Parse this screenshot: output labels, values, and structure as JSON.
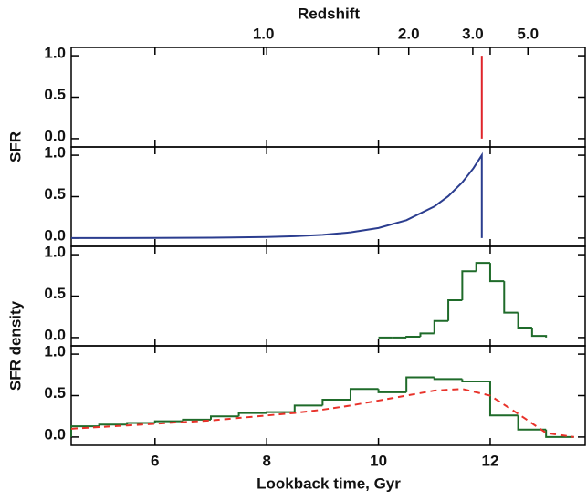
{
  "chart_data": [
    {
      "type": "line",
      "x2label": "Redshift",
      "x2ticks": [
        {
          "value": 1,
          "label": "1.0"
        },
        {
          "value": 2,
          "label": "2.0"
        },
        {
          "value": 3,
          "label": "3.0"
        },
        {
          "value": 5,
          "label": "5.0"
        }
      ],
      "xlim": [
        4.5,
        13.7
      ],
      "xticks": [
        6,
        8,
        10,
        12
      ],
      "ylim": [
        -0.1,
        1.1
      ],
      "yticks": [
        {
          "value": 0,
          "label": "0.0"
        },
        {
          "value": 0.5,
          "label": "0.5"
        },
        {
          "value": 1,
          "label": "1.0"
        }
      ],
      "ylabel": "SFR",
      "color": "#e0242a",
      "x": [
        11.85,
        11.85
      ],
      "values": [
        0,
        1
      ]
    },
    {
      "type": "line",
      "xlim": [
        4.5,
        13.7
      ],
      "xticks": [
        6,
        8,
        10,
        12
      ],
      "ylim": [
        -0.1,
        1.1
      ],
      "yticks": [
        {
          "value": 0,
          "label": "0.0"
        },
        {
          "value": 0.5,
          "label": "0.5"
        },
        {
          "value": 1,
          "label": "1.0"
        }
      ],
      "color": "#2b3d8f",
      "x": [
        4.5,
        5,
        6,
        7,
        8,
        8.5,
        9,
        9.5,
        10,
        10.5,
        11,
        11.25,
        11.5,
        11.7,
        11.85,
        11.85
      ],
      "values": [
        0.0002,
        0.0004,
        0.0013,
        0.004,
        0.0126,
        0.022,
        0.039,
        0.069,
        0.122,
        0.216,
        0.381,
        0.506,
        0.672,
        0.843,
        1,
        0
      ]
    },
    {
      "type": "histogram",
      "xlim": [
        4.5,
        13.7
      ],
      "xticks": [
        6,
        8,
        10,
        12
      ],
      "ylim": [
        -0.1,
        1.1
      ],
      "yticks": [
        {
          "value": 0,
          "label": "0.0"
        },
        {
          "value": 0.5,
          "label": "0.5"
        },
        {
          "value": 1,
          "label": "1.0"
        }
      ],
      "ylabel": "SFR density",
      "color": "#1f6b2a",
      "bins": [
        10,
        10.25,
        10.5,
        10.75,
        11,
        11.25,
        11.5,
        11.75,
        12,
        12.25,
        12.5,
        12.75,
        13
      ],
      "values": [
        0,
        0,
        0.01,
        0.05,
        0.2,
        0.45,
        0.8,
        0.9,
        0.68,
        0.3,
        0.12,
        0.02
      ]
    },
    {
      "type": "histogram",
      "xlim": [
        4.5,
        13.7
      ],
      "xticks": [
        6,
        8,
        10,
        12
      ],
      "ylim": [
        -0.1,
        1.1
      ],
      "yticks": [
        {
          "value": 0,
          "label": "0.0"
        },
        {
          "value": 0.5,
          "label": "0.5"
        },
        {
          "value": 1,
          "label": "1.0"
        }
      ],
      "xlabel": "Lookback time, Gyr",
      "color": "#1f6b2a",
      "bins": [
        4.5,
        5,
        5.5,
        6,
        6.5,
        7,
        7.5,
        8,
        8.5,
        9,
        9.5,
        10,
        10.5,
        11,
        11.5,
        12,
        12.5,
        13,
        13.5
      ],
      "values": [
        0.13,
        0.15,
        0.17,
        0.19,
        0.21,
        0.25,
        0.29,
        0.3,
        0.38,
        0.45,
        0.58,
        0.54,
        0.72,
        0.7,
        0.67,
        0.26,
        0.09,
        0
      ],
      "overlay": {
        "color": "#e8322a",
        "style": "dashed",
        "x": [
          4.5,
          5,
          5.5,
          6,
          6.5,
          7,
          7.5,
          8,
          8.5,
          9,
          9.5,
          10,
          10.5,
          11,
          11.5,
          12,
          12.5,
          13,
          13.5
        ],
        "values": [
          0.1,
          0.12,
          0.14,
          0.16,
          0.18,
          0.2,
          0.23,
          0.26,
          0.29,
          0.33,
          0.38,
          0.44,
          0.5,
          0.56,
          0.58,
          0.5,
          0.28,
          0.05,
          0
        ]
      }
    }
  ]
}
